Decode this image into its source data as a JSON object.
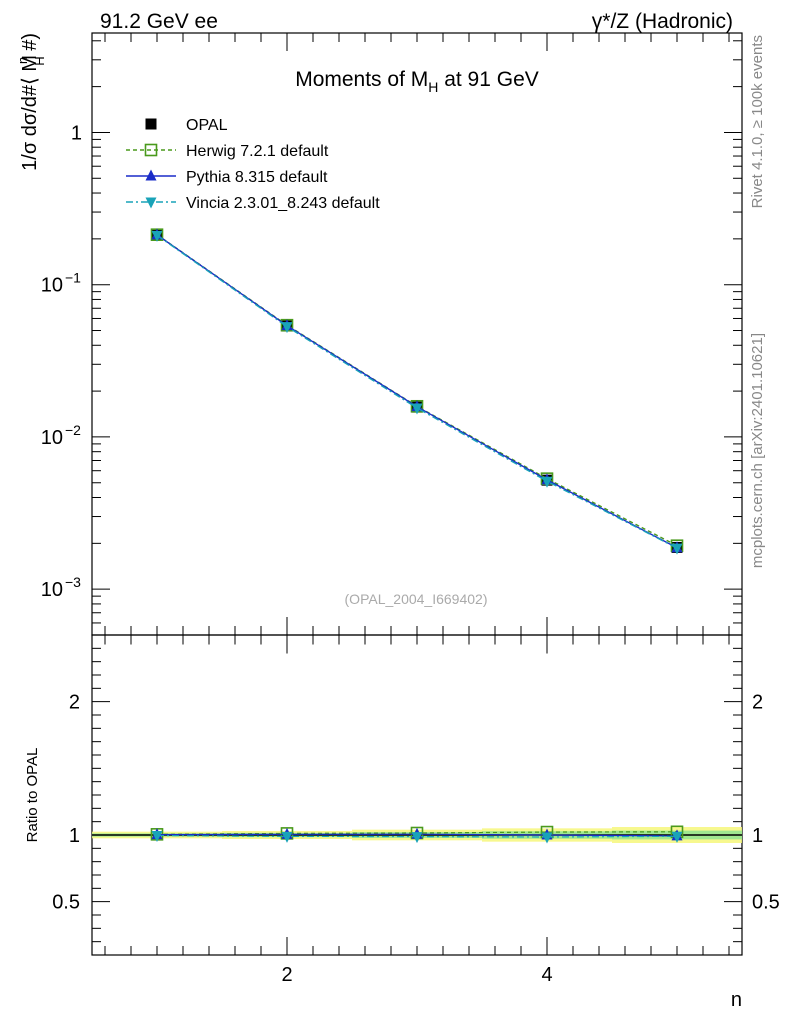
{
  "header": {
    "left_label": "91.2 GeV ee",
    "right_label": "γ*/Z (Hadronic)",
    "side_label_top": "Rivet 4.1.0, ≥ 100k events",
    "side_label_bottom": "mcplots.cern.ch [arXiv:2401.10621]"
  },
  "chart_data": {
    "type": "line",
    "title_main": "Moments of M",
    "title_sub": "H",
    "title_tail": " at 91 GeV",
    "watermark": "(OPAL_2004_I669402)",
    "ylabel_main": "1/σ  dσ/d#⟨ M",
    "ylabel_sub": "H",
    "ylabel_sup": "n",
    "ylabel_tail": " #)",
    "ratio_ylabel": "Ratio to OPAL",
    "xlabel": "n",
    "x": [
      1,
      2,
      3,
      4,
      5
    ],
    "xlim": [
      0.5,
      5.5
    ],
    "ylim": [
      0.0005,
      4.5
    ],
    "ylim_ratio": [
      0.1,
      2.5
    ],
    "x_ticks": [
      {
        "v": 2,
        "label": "2"
      },
      {
        "v": 4,
        "label": "4"
      }
    ],
    "y_ticks": [
      {
        "v": 1,
        "base": "1",
        "exp": ""
      },
      {
        "v": 0.1,
        "base": "10",
        "exp": "−1"
      },
      {
        "v": 0.01,
        "base": "10",
        "exp": "−2"
      },
      {
        "v": 0.001,
        "base": "10",
        "exp": "−3"
      }
    ],
    "ratio_ticks": [
      {
        "v": 2,
        "label": "2"
      },
      {
        "v": 1,
        "label": "1"
      },
      {
        "v": 0.5,
        "label": "0.5"
      }
    ],
    "data_series": {
      "name": "OPAL",
      "values": [
        0.212,
        0.0535,
        0.0157,
        0.0052,
        0.00188
      ]
    },
    "ratio_bands": {
      "yellow": [
        0.025,
        0.03,
        0.04,
        0.05,
        0.06
      ],
      "green": [
        0.012,
        0.016,
        0.022,
        0.028,
        0.033
      ]
    },
    "series": [
      {
        "name": "Herwig 7.2.1 default",
        "color": "#4a9a1c",
        "marker": "open-square",
        "dash": "4,3",
        "values": [
          0.213,
          0.0542,
          0.0159,
          0.00532,
          0.00193
        ],
        "ratio": [
          1.005,
          1.012,
          1.015,
          1.022,
          1.024
        ]
      },
      {
        "name": "Pythia 8.315 default",
        "color": "#1a2cc8",
        "marker": "triangle-up",
        "dash": "",
        "values": [
          0.2125,
          0.0538,
          0.0158,
          0.00522,
          0.00187
        ],
        "ratio": [
          1.003,
          1.005,
          1.006,
          1.0,
          0.993
        ]
      },
      {
        "name": "Vincia 2.3.01_8.243 default",
        "color": "#19a3b8",
        "marker": "triangle-down",
        "dash": "7,3,2,3",
        "values": [
          0.211,
          0.053,
          0.0155,
          0.00512,
          0.00186
        ],
        "ratio": [
          0.996,
          0.99,
          0.988,
          0.985,
          0.99
        ]
      }
    ]
  }
}
